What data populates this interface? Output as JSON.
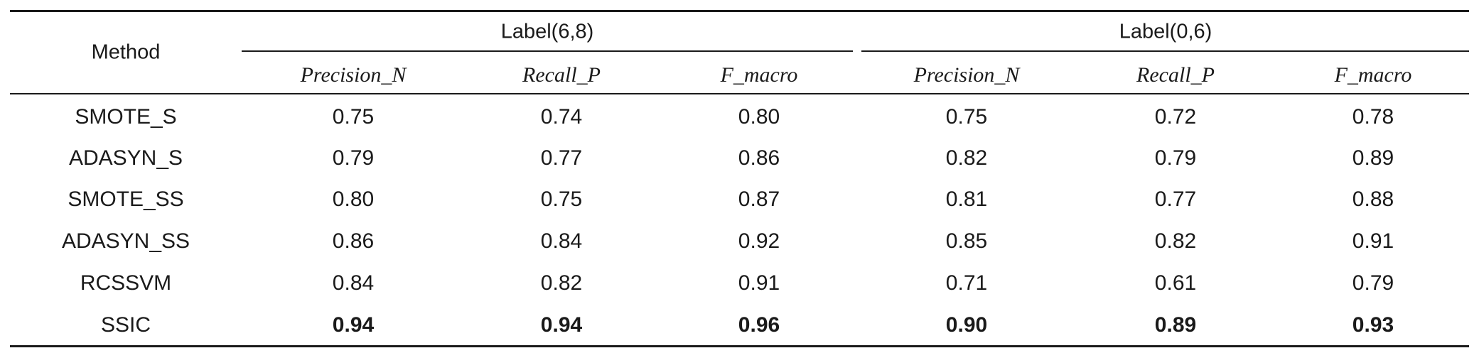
{
  "table": {
    "method_header": "Method",
    "groups": [
      {
        "label": "Label(6,8)",
        "columns": [
          "Precision_N",
          "Recall_P",
          "F_macro"
        ]
      },
      {
        "label": "Label(0,6)",
        "columns": [
          "Precision_N",
          "Recall_P",
          "F_macro"
        ]
      }
    ],
    "rows": [
      {
        "method": "SMOTE_S",
        "values": [
          "0.75",
          "0.74",
          "0.80",
          "0.75",
          "0.72",
          "0.78"
        ],
        "bold": false
      },
      {
        "method": "ADASYN_S",
        "values": [
          "0.79",
          "0.77",
          "0.86",
          "0.82",
          "0.79",
          "0.89"
        ],
        "bold": false
      },
      {
        "method": "SMOTE_SS",
        "values": [
          "0.80",
          "0.75",
          "0.87",
          "0.81",
          "0.77",
          "0.88"
        ],
        "bold": false
      },
      {
        "method": "ADASYN_SS",
        "values": [
          "0.86",
          "0.84",
          "0.92",
          "0.85",
          "0.82",
          "0.91"
        ],
        "bold": false
      },
      {
        "method": "RCSSVM",
        "values": [
          "0.84",
          "0.82",
          "0.91",
          "0.71",
          "0.61",
          "0.79"
        ],
        "bold": false
      },
      {
        "method": "SSIC",
        "values": [
          "0.94",
          "0.94",
          "0.96",
          "0.90",
          "0.89",
          "0.93"
        ],
        "bold": true
      }
    ]
  }
}
